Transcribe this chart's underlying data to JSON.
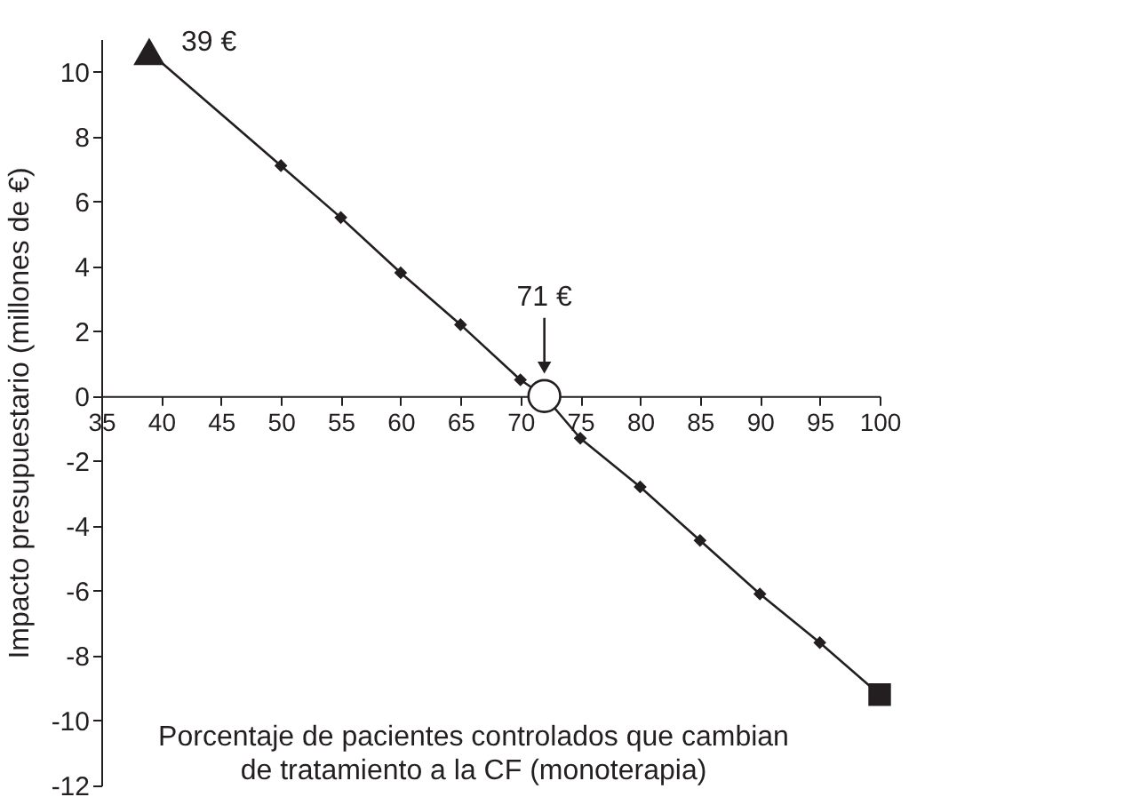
{
  "chart_data": {
    "type": "line",
    "xlabel": "Porcentaje de pacientes controlados que cambian de tratamiento a la CF (monoterapia)",
    "ylabel": "Impacto presupuestario (millones de €)",
    "xlim": [
      35,
      100
    ],
    "xticks": [
      35,
      40,
      45,
      50,
      55,
      60,
      65,
      70,
      75,
      80,
      85,
      90,
      95,
      100
    ],
    "ylim": [
      -12,
      11
    ],
    "yticks": [
      -12,
      -10,
      -8,
      -6,
      -4,
      -2,
      0,
      2,
      4,
      6,
      8,
      10
    ],
    "grid": false,
    "series": [
      {
        "type": "line",
        "color": "#231f20",
        "marker": "none",
        "x": [
          39,
          50,
          55,
          60,
          65,
          70,
          72,
          75,
          80,
          85,
          90,
          95,
          100
        ],
        "values": [
          10.6,
          7.1,
          5.5,
          3.8,
          2.2,
          0.5,
          0,
          -1.3,
          -2.8,
          -4.45,
          -6.1,
          -7.6,
          -9.2
        ]
      },
      {
        "type": "scatter",
        "color": "#231f20",
        "marker": "diamond",
        "x": [
          50,
          55,
          60,
          65,
          70,
          75,
          80,
          85,
          90,
          95
        ],
        "values": [
          7.1,
          5.5,
          3.8,
          2.2,
          0.5,
          -1.3,
          -2.8,
          -4.45,
          -6.1,
          -7.6
        ]
      },
      {
        "type": "scatter",
        "color": "#231f20",
        "marker": "triangle",
        "x": [
          39
        ],
        "values": [
          10.6
        ]
      },
      {
        "type": "scatter",
        "color": "#ffffff",
        "marker": "circle",
        "x": [
          72
        ],
        "values": [
          0
        ]
      },
      {
        "type": "scatter",
        "color": "#231f20",
        "marker": "square",
        "x": [
          100
        ],
        "values": [
          -9.2
        ]
      }
    ],
    "annotations": [
      {
        "text": "39 €",
        "x": 39,
        "y": 10.6
      },
      {
        "text": "71 €",
        "x": 72,
        "y": 0
      }
    ]
  }
}
